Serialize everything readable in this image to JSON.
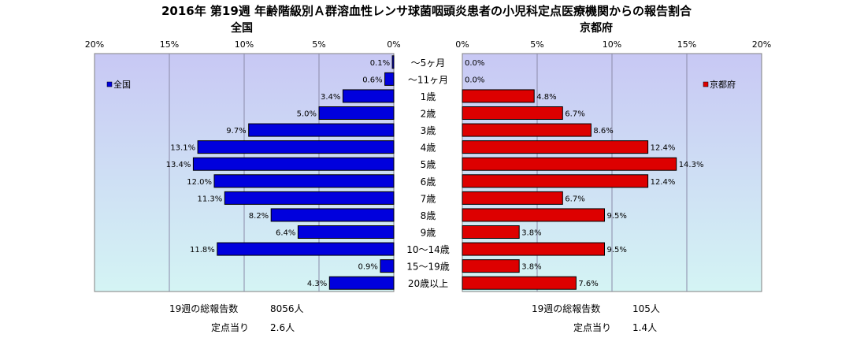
{
  "title": "2016年 第19週 年齢階級別Ａ群溶血性レンサ球菌咽頭炎患者の小児科定点医療機関からの報告割合",
  "left_header": "全国",
  "right_header": "京都府",
  "footer": {
    "left": {
      "total_label": "19週の総報告数",
      "total_value": "8056人",
      "per_label": "定点当り",
      "per_value": "2.6人"
    },
    "right": {
      "total_label": "19週の総報告数",
      "total_value": "105人",
      "per_label": "定点当り",
      "per_value": "1.4人"
    }
  },
  "colors": {
    "national": "#0000dd",
    "kyoto": "#dd0000",
    "plot_top": "#c8c8f4",
    "plot_bottom": "#d4f4f4"
  },
  "chart_data": [
    {
      "type": "bar",
      "orientation": "horizontal",
      "direction": "reversed",
      "title": "全国",
      "legend": "全国",
      "legend_position": "top-left",
      "xlim": [
        0,
        20
      ],
      "x_ticks": [
        "20%",
        "15%",
        "10%",
        "5%",
        "0%"
      ],
      "categories": [
        "～5ヶ月",
        "～11ヶ月",
        "1歳",
        "2歳",
        "3歳",
        "4歳",
        "5歳",
        "6歳",
        "7歳",
        "8歳",
        "9歳",
        "10～14歳",
        "15～19歳",
        "20歳以上"
      ],
      "values": [
        0.1,
        0.6,
        3.4,
        5.0,
        9.7,
        13.1,
        13.4,
        12.0,
        11.3,
        8.2,
        6.4,
        11.8,
        0.9,
        4.3
      ],
      "labels": [
        "0.1%",
        "0.6%",
        "3.4%",
        "5.0%",
        "9.7%",
        "13.1%",
        "13.4%",
        "12.0%",
        "11.3%",
        "8.2%",
        "6.4%",
        "11.8%",
        "0.9%",
        "4.3%"
      ],
      "grid": true
    },
    {
      "type": "bar",
      "orientation": "horizontal",
      "title": "京都府",
      "legend": "京都府",
      "legend_position": "top-right",
      "xlim": [
        0,
        20
      ],
      "x_ticks": [
        "0%",
        "5%",
        "10%",
        "15%",
        "20%"
      ],
      "categories": [
        "～5ヶ月",
        "～11ヶ月",
        "1歳",
        "2歳",
        "3歳",
        "4歳",
        "5歳",
        "6歳",
        "7歳",
        "8歳",
        "9歳",
        "10～14歳",
        "15～19歳",
        "20歳以上"
      ],
      "values": [
        0.0,
        0.0,
        4.8,
        6.7,
        8.6,
        12.4,
        14.3,
        12.4,
        6.7,
        9.5,
        3.8,
        9.5,
        3.8,
        7.6
      ],
      "labels": [
        "0.0%",
        "0.0%",
        "4.8%",
        "6.7%",
        "8.6%",
        "12.4%",
        "14.3%",
        "12.4%",
        "6.7%",
        "9.5%",
        "3.8%",
        "9.5%",
        "3.8%",
        "7.6%"
      ],
      "grid": true
    }
  ]
}
